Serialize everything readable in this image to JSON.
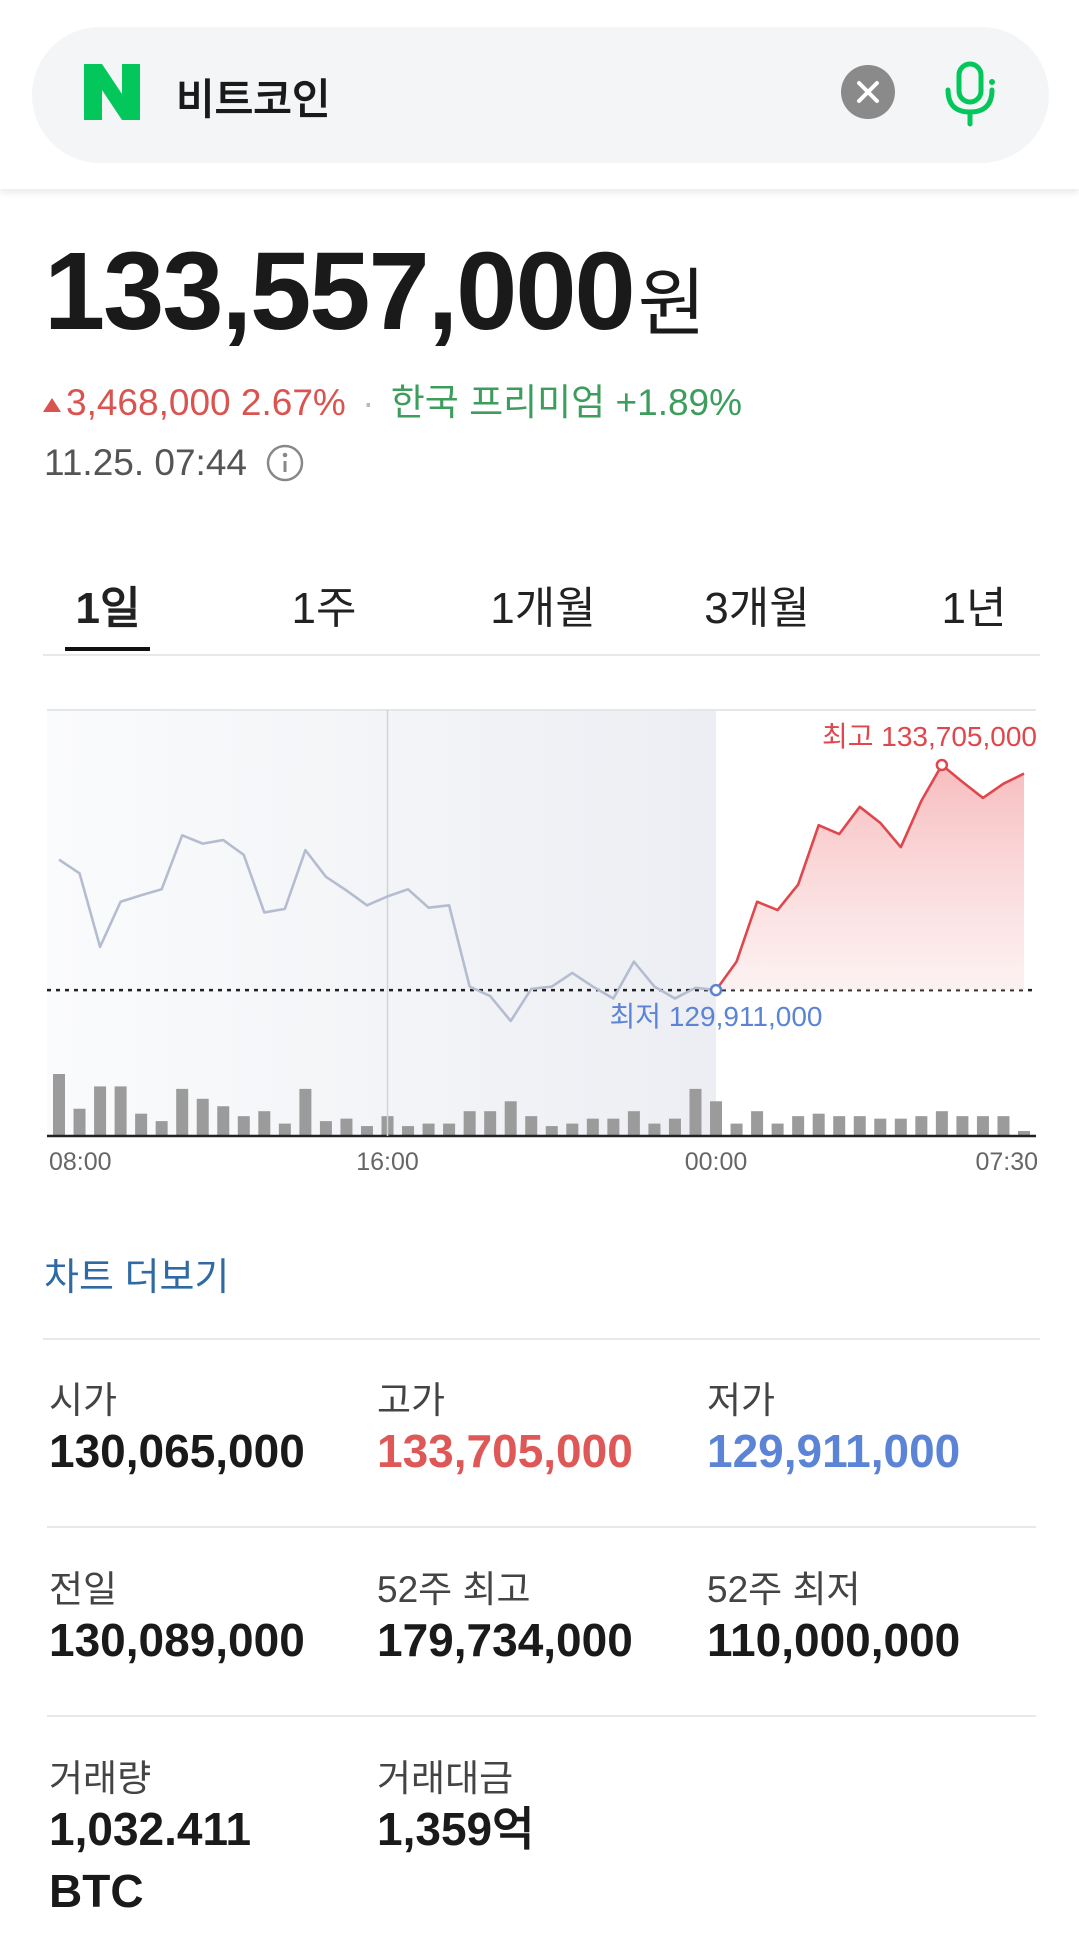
{
  "search": {
    "query": "비트코인"
  },
  "quote": {
    "price": "133,557,000",
    "unit": "원",
    "change": "3,468,000",
    "change_rate": "2.67%",
    "premium_label": "한국 프리미엄",
    "premium": "+1.89%",
    "time": "11.25. 07:44"
  },
  "tabs": {
    "items": [
      "1일",
      "1주",
      "1개월",
      "3개월",
      "1년"
    ],
    "selected": 0
  },
  "chart": {
    "type": "line",
    "categories": [
      "08:00",
      null,
      null,
      null,
      null,
      null,
      null,
      null,
      null,
      null,
      null,
      null,
      null,
      null,
      null,
      null,
      "16:00",
      null,
      null,
      null,
      null,
      null,
      null,
      null,
      null,
      null,
      null,
      null,
      null,
      null,
      null,
      null,
      "00:00",
      null,
      null,
      null,
      null,
      null,
      null,
      null,
      null,
      null,
      null,
      null,
      null,
      null,
      null,
      "07:30"
    ],
    "series": [
      {
        "color": "#b4bdd0",
        "values": [
          132110000,
          131880000,
          130640000,
          131400000,
          131510000,
          131610000,
          132520000,
          132380000,
          132440000,
          132190000,
          131220000,
          131280000,
          132270000,
          131820000,
          131590000,
          131340000,
          131490000,
          131610000,
          131300000,
          131340000,
          129970000,
          129810000,
          129390000,
          129930000,
          129970000,
          130200000,
          129970000,
          129770000,
          130390000,
          129970000,
          129770000,
          129950000,
          129911000,
          null,
          null,
          null,
          null,
          null,
          null,
          null,
          null,
          null,
          null,
          null,
          null,
          null,
          null,
          null
        ]
      },
      {
        "color": "#e0474c",
        "values": [
          null,
          null,
          null,
          null,
          null,
          null,
          null,
          null,
          null,
          null,
          null,
          null,
          null,
          null,
          null,
          null,
          null,
          null,
          null,
          null,
          null,
          null,
          null,
          null,
          null,
          null,
          null,
          null,
          null,
          null,
          null,
          null,
          129911000,
          130390000,
          131400000,
          131260000,
          131690000,
          132690000,
          132540000,
          133000000,
          132730000,
          132320000,
          133100000,
          133705000,
          133420000,
          133150000,
          133390000,
          133560000
        ]
      }
    ],
    "volume": {
      "color": "#9b9b9b",
      "values": [
        50,
        22,
        40,
        40,
        18,
        12,
        38,
        30,
        24,
        16,
        20,
        10,
        38,
        12,
        14,
        8,
        16,
        8,
        10,
        10,
        20,
        20,
        28,
        16,
        8,
        10,
        14,
        14,
        20,
        10,
        14,
        38,
        28,
        10,
        20,
        10,
        16,
        18,
        16,
        16,
        14,
        14,
        16,
        20,
        16,
        16,
        16,
        4
      ]
    },
    "high_label": "최고 133,705,000",
    "high_color": "#e0474c",
    "low_label": "최저 129,911,000",
    "low_color": "#5b84d6"
  },
  "more_link": "차트 더보기",
  "stats": [
    [
      {
        "label": "시가",
        "value": "130,065,000"
      },
      {
        "label": "고가",
        "value": "133,705,000",
        "color": "#df5858"
      },
      {
        "label": "저가",
        "value": "129,911,000",
        "color": "#5b84d6"
      }
    ],
    [
      {
        "label": "전일",
        "value": "130,089,000"
      },
      {
        "label": "52주 최고",
        "value": "179,734,000"
      },
      {
        "label": "52주 최저",
        "value": "110,000,000"
      }
    ],
    [
      {
        "label": "거래량",
        "value": "1,032.411 BTC"
      },
      {
        "label": "거래대금",
        "value": "1,359억"
      }
    ]
  ]
}
